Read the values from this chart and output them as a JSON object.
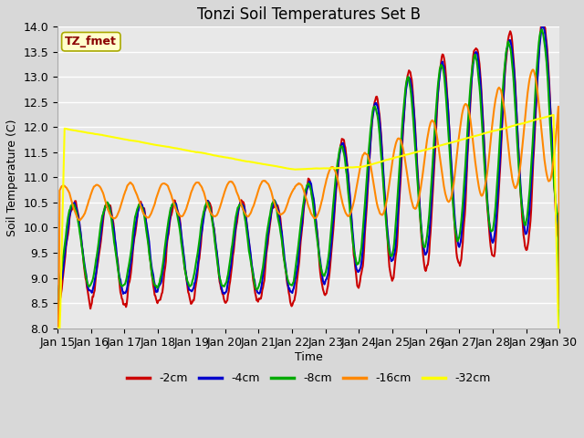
{
  "title": "Tonzi Soil Temperatures Set B",
  "xlabel": "Time",
  "ylabel": "Soil Temperature (C)",
  "ylim": [
    8.0,
    14.0
  ],
  "yticks": [
    8.0,
    8.5,
    9.0,
    9.5,
    10.0,
    10.5,
    11.0,
    11.5,
    12.0,
    12.5,
    13.0,
    13.5,
    14.0
  ],
  "xtick_labels": [
    "Jan 15",
    "Jan 16",
    "Jan 17",
    "Jan 18",
    "Jan 19",
    "Jan 20",
    "Jan 21",
    "Jan 22",
    "Jan 23",
    "Jan 24",
    "Jan 25",
    "Jan 26",
    "Jan 27",
    "Jan 28",
    "Jan 29",
    "Jan 30"
  ],
  "series_colors": [
    "#cc0000",
    "#0000cc",
    "#00aa00",
    "#ff8800",
    "#ffff00"
  ],
  "series_labels": [
    "-2cm",
    "-4cm",
    "-8cm",
    "-16cm",
    "-32cm"
  ],
  "legend_label": "TZ_fmet",
  "legend_box_facecolor": "#ffffcc",
  "legend_box_edgecolor": "#aaaa00",
  "plot_bg_color": "#e8e8e8",
  "fig_bg_color": "#d8d8d8",
  "grid_color": "#ffffff",
  "title_fontsize": 12,
  "axis_label_fontsize": 9,
  "tick_fontsize": 9,
  "line_width": 1.5
}
